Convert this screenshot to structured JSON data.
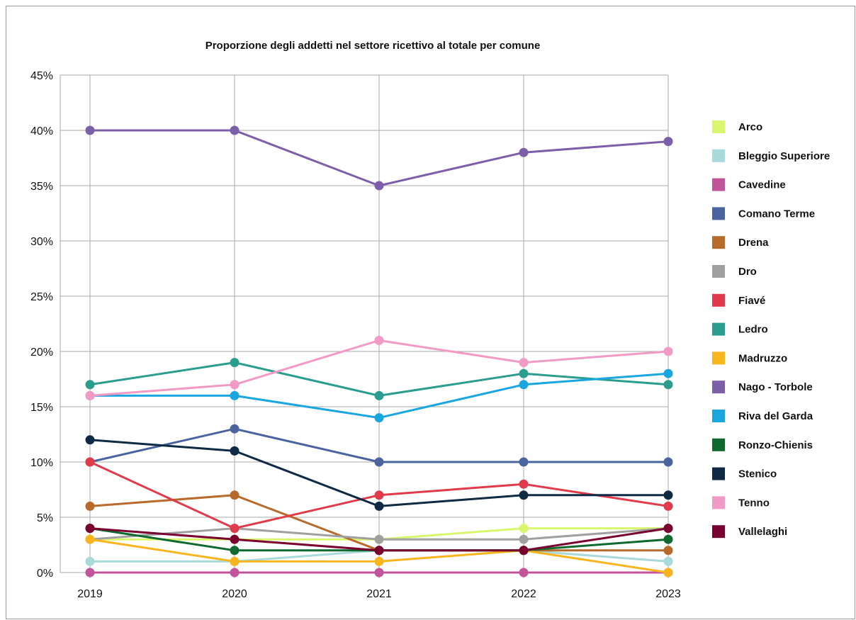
{
  "chart_data": {
    "type": "line",
    "title": "Proporzione degli addetti nel settore ricettivo al totale per comune",
    "xlabel": "",
    "ylabel": "",
    "x": [
      "2019",
      "2020",
      "2021",
      "2022",
      "2023"
    ],
    "ylim": [
      0,
      45
    ],
    "yticks": [
      "0%",
      "5%",
      "10%",
      "15%",
      "20%",
      "25%",
      "30%",
      "35%",
      "40%",
      "45%"
    ],
    "grid": true,
    "legend_position": "right",
    "series": [
      {
        "name": "Arco",
        "color": "#d9f76e",
        "values": [
          3,
          3,
          3,
          4,
          4
        ]
      },
      {
        "name": "Bleggio Superiore",
        "color": "#a8dadc",
        "values": [
          1,
          1,
          2,
          2,
          1
        ]
      },
      {
        "name": "Cavedine",
        "color": "#c2549c",
        "values": [
          0,
          0,
          0,
          0,
          0
        ]
      },
      {
        "name": "Comano Terme",
        "color": "#4a64a0",
        "values": [
          10,
          13,
          10,
          10,
          10
        ]
      },
      {
        "name": "Drena",
        "color": "#b86a2a",
        "values": [
          6,
          7,
          2,
          2,
          2
        ]
      },
      {
        "name": "Dro",
        "color": "#a0a0a0",
        "values": [
          3,
          4,
          3,
          3,
          4
        ]
      },
      {
        "name": "Fiavé",
        "color": "#e03a4b",
        "values": [
          10,
          4,
          7,
          8,
          6
        ]
      },
      {
        "name": "Ledro",
        "color": "#2a9d8f",
        "values": [
          17,
          19,
          16,
          18,
          17
        ]
      },
      {
        "name": "Madruzzo",
        "color": "#f9b51e",
        "values": [
          3,
          1,
          1,
          2,
          0
        ]
      },
      {
        "name": "Nago - Torbole",
        "color": "#7d5ea8",
        "values": [
          40,
          40,
          35,
          38,
          39
        ]
      },
      {
        "name": "Riva del Garda",
        "color": "#1aa7e0",
        "values": [
          16,
          16,
          14,
          17,
          18
        ]
      },
      {
        "name": "Ronzo-Chienis",
        "color": "#0f6a2f",
        "values": [
          4,
          2,
          2,
          2,
          3
        ]
      },
      {
        "name": "Stenico",
        "color": "#0e2a44",
        "values": [
          12,
          11,
          6,
          7,
          7
        ]
      },
      {
        "name": "Tenno",
        "color": "#f29ac6",
        "values": [
          16,
          17,
          21,
          19,
          20
        ]
      },
      {
        "name": "Vallelaghi",
        "color": "#7a0030",
        "values": [
          4,
          3,
          2,
          2,
          4
        ]
      }
    ]
  }
}
